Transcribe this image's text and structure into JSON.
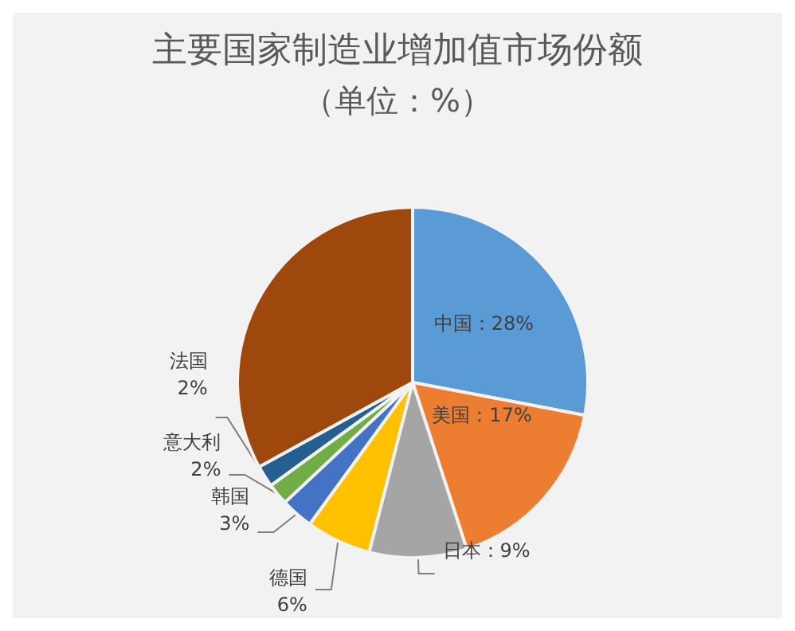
{
  "chart_data": {
    "type": "pie",
    "title": "主要国家制造业增加值市场份额",
    "subtitle": "（单位：%）",
    "categories": [
      null,
      null,
      null,
      null,
      null,
      null,
      null,
      null
    ],
    "values": [
      28,
      17,
      9,
      6,
      3,
      2,
      2,
      33
    ],
    "value_labels": [
      "中国：28%",
      "美国：17%",
      "日本：9%",
      "德国\n6%",
      "韩国\n3%",
      "意大利\n2%",
      "法国\n2%",
      null
    ],
    "colors": [
      "#5b9bd5",
      "#ed7d31",
      "#a5a5a5",
      "#ffc000",
      "#4472c4",
      "#70ad47",
      "#255e91",
      "#9e480e"
    ]
  }
}
